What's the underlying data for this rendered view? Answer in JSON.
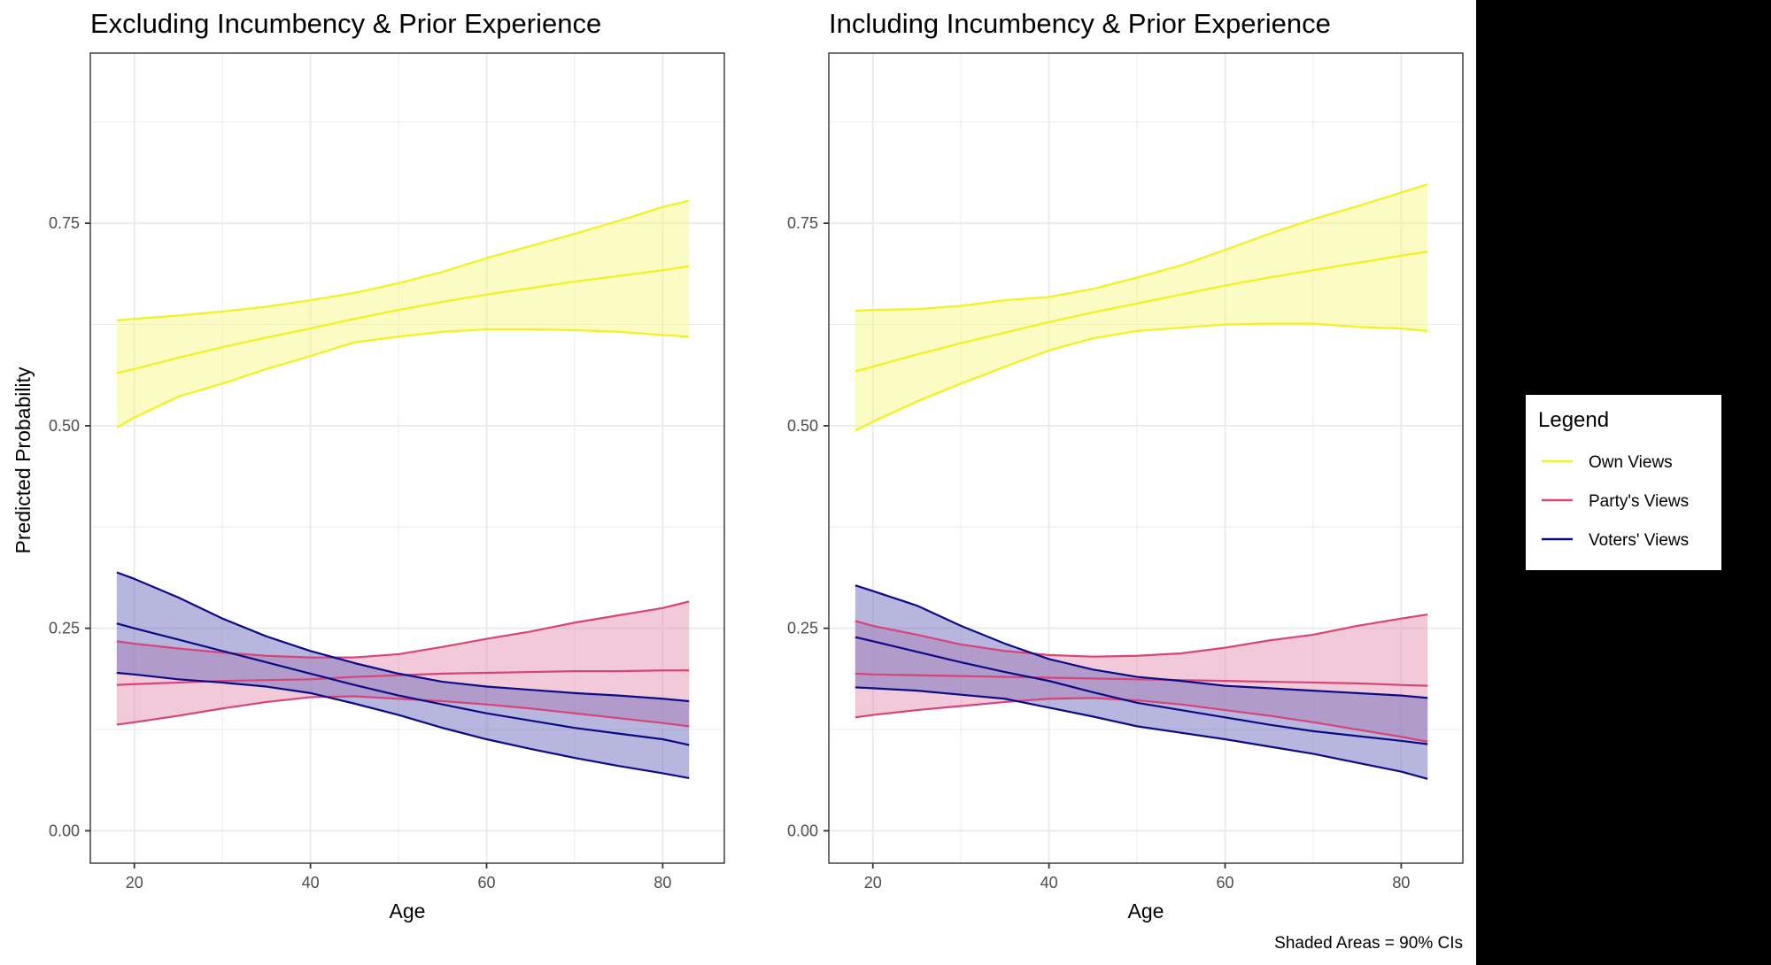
{
  "chart_data": [
    {
      "type": "line",
      "title": "Excluding Incumbency & Prior Experience",
      "xlabel": "Age",
      "ylabel": "Predicted Probability",
      "xlim": [
        15,
        87
      ],
      "ylim": [
        -0.04,
        0.96
      ],
      "xticks": [
        20,
        40,
        60,
        80
      ],
      "xtick_labels": [
        "20",
        "40",
        "60",
        "80"
      ],
      "yticks": [
        0,
        0.25,
        0.5,
        0.75
      ],
      "ytick_labels": [
        "0.00",
        "0.25",
        "0.50",
        "0.75"
      ],
      "grid": true,
      "x": [
        18,
        20,
        25,
        30,
        35,
        40,
        45,
        50,
        55,
        60,
        65,
        70,
        75,
        80,
        83
      ],
      "series": [
        {
          "name": "Own Views",
          "mean": [
            0.565,
            0.57,
            0.584,
            0.597,
            0.609,
            0.62,
            0.632,
            0.643,
            0.653,
            0.662,
            0.67,
            0.678,
            0.685,
            0.692,
            0.697
          ],
          "lower": [
            0.498,
            0.51,
            0.536,
            0.552,
            0.57,
            0.586,
            0.603,
            0.61,
            0.616,
            0.619,
            0.619,
            0.618,
            0.616,
            0.612,
            0.61
          ],
          "upper": [
            0.63,
            0.632,
            0.636,
            0.641,
            0.647,
            0.655,
            0.664,
            0.676,
            0.69,
            0.707,
            0.722,
            0.737,
            0.753,
            0.77,
            0.778
          ]
        },
        {
          "name": "Party's Views",
          "mean": [
            0.18,
            0.181,
            0.183,
            0.185,
            0.186,
            0.187,
            0.19,
            0.192,
            0.194,
            0.195,
            0.196,
            0.197,
            0.197,
            0.198,
            0.198
          ],
          "lower": [
            0.131,
            0.134,
            0.142,
            0.151,
            0.159,
            0.165,
            0.166,
            0.163,
            0.16,
            0.156,
            0.151,
            0.145,
            0.139,
            0.133,
            0.129
          ],
          "upper": [
            0.234,
            0.231,
            0.225,
            0.22,
            0.216,
            0.214,
            0.214,
            0.218,
            0.227,
            0.237,
            0.246,
            0.257,
            0.266,
            0.275,
            0.283
          ]
        },
        {
          "name": "Voters' Views",
          "mean": [
            0.256,
            0.25,
            0.236,
            0.222,
            0.208,
            0.194,
            0.18,
            0.167,
            0.156,
            0.145,
            0.136,
            0.127,
            0.12,
            0.113,
            0.106
          ],
          "lower": [
            0.195,
            0.193,
            0.187,
            0.183,
            0.178,
            0.17,
            0.157,
            0.143,
            0.127,
            0.113,
            0.101,
            0.09,
            0.08,
            0.071,
            0.065
          ],
          "upper": [
            0.319,
            0.311,
            0.288,
            0.262,
            0.24,
            0.222,
            0.207,
            0.194,
            0.184,
            0.178,
            0.174,
            0.17,
            0.167,
            0.163,
            0.16
          ]
        }
      ]
    },
    {
      "type": "line",
      "title": "Including Incumbency & Prior Experience",
      "xlabel": "Age",
      "ylabel": "",
      "xlim": [
        15,
        87
      ],
      "ylim": [
        -0.04,
        0.96
      ],
      "xticks": [
        20,
        40,
        60,
        80
      ],
      "xtick_labels": [
        "20",
        "40",
        "60",
        "80"
      ],
      "yticks": [
        0,
        0.25,
        0.5,
        0.75
      ],
      "ytick_labels": [
        "0.00",
        "0.25",
        "0.50",
        "0.75"
      ],
      "grid": true,
      "x": [
        18,
        20,
        25,
        30,
        35,
        40,
        45,
        50,
        55,
        60,
        65,
        70,
        75,
        80,
        83
      ],
      "series": [
        {
          "name": "Own Views",
          "mean": [
            0.567,
            0.573,
            0.588,
            0.602,
            0.615,
            0.628,
            0.64,
            0.651,
            0.662,
            0.673,
            0.683,
            0.692,
            0.701,
            0.71,
            0.715
          ],
          "lower": [
            0.494,
            0.505,
            0.53,
            0.552,
            0.573,
            0.593,
            0.608,
            0.617,
            0.621,
            0.625,
            0.626,
            0.626,
            0.622,
            0.62,
            0.617
          ],
          "upper": [
            0.642,
            0.643,
            0.644,
            0.648,
            0.655,
            0.659,
            0.669,
            0.683,
            0.698,
            0.717,
            0.737,
            0.755,
            0.771,
            0.788,
            0.798
          ]
        },
        {
          "name": "Party's Views",
          "mean": [
            0.194,
            0.193,
            0.192,
            0.191,
            0.19,
            0.189,
            0.188,
            0.187,
            0.186,
            0.185,
            0.184,
            0.183,
            0.182,
            0.18,
            0.179
          ],
          "lower": [
            0.14,
            0.143,
            0.149,
            0.154,
            0.159,
            0.163,
            0.164,
            0.161,
            0.156,
            0.149,
            0.142,
            0.134,
            0.125,
            0.116,
            0.11
          ],
          "upper": [
            0.259,
            0.253,
            0.242,
            0.23,
            0.222,
            0.217,
            0.215,
            0.216,
            0.219,
            0.226,
            0.235,
            0.242,
            0.253,
            0.262,
            0.267
          ]
        },
        {
          "name": "Voters' Views",
          "mean": [
            0.239,
            0.234,
            0.221,
            0.208,
            0.196,
            0.185,
            0.171,
            0.158,
            0.149,
            0.14,
            0.131,
            0.123,
            0.117,
            0.111,
            0.107
          ],
          "lower": [
            0.177,
            0.176,
            0.173,
            0.168,
            0.163,
            0.152,
            0.141,
            0.129,
            0.121,
            0.113,
            0.104,
            0.095,
            0.084,
            0.073,
            0.064
          ],
          "upper": [
            0.303,
            0.296,
            0.278,
            0.253,
            0.231,
            0.212,
            0.199,
            0.19,
            0.185,
            0.179,
            0.176,
            0.173,
            0.17,
            0.167,
            0.164
          ]
        }
      ]
    }
  ],
  "legend": {
    "title": "Legend",
    "placement": "right",
    "items": [
      {
        "label": "Own Views",
        "color": "#f2f21c",
        "fill": "#f7f78a"
      },
      {
        "label": "Party's Views",
        "color": "#d6447a",
        "fill": "#e593b2"
      },
      {
        "label": "Voters' Views",
        "color": "#0b0b86",
        "fill": "#6d6dbd"
      }
    ]
  },
  "caption": "Shaded Areas = 90% CIs",
  "colors": {
    "grid": "#ebebeb",
    "panel_border": "#333333",
    "tick_text": "#4d4d4d",
    "right_margin": "#000000"
  }
}
